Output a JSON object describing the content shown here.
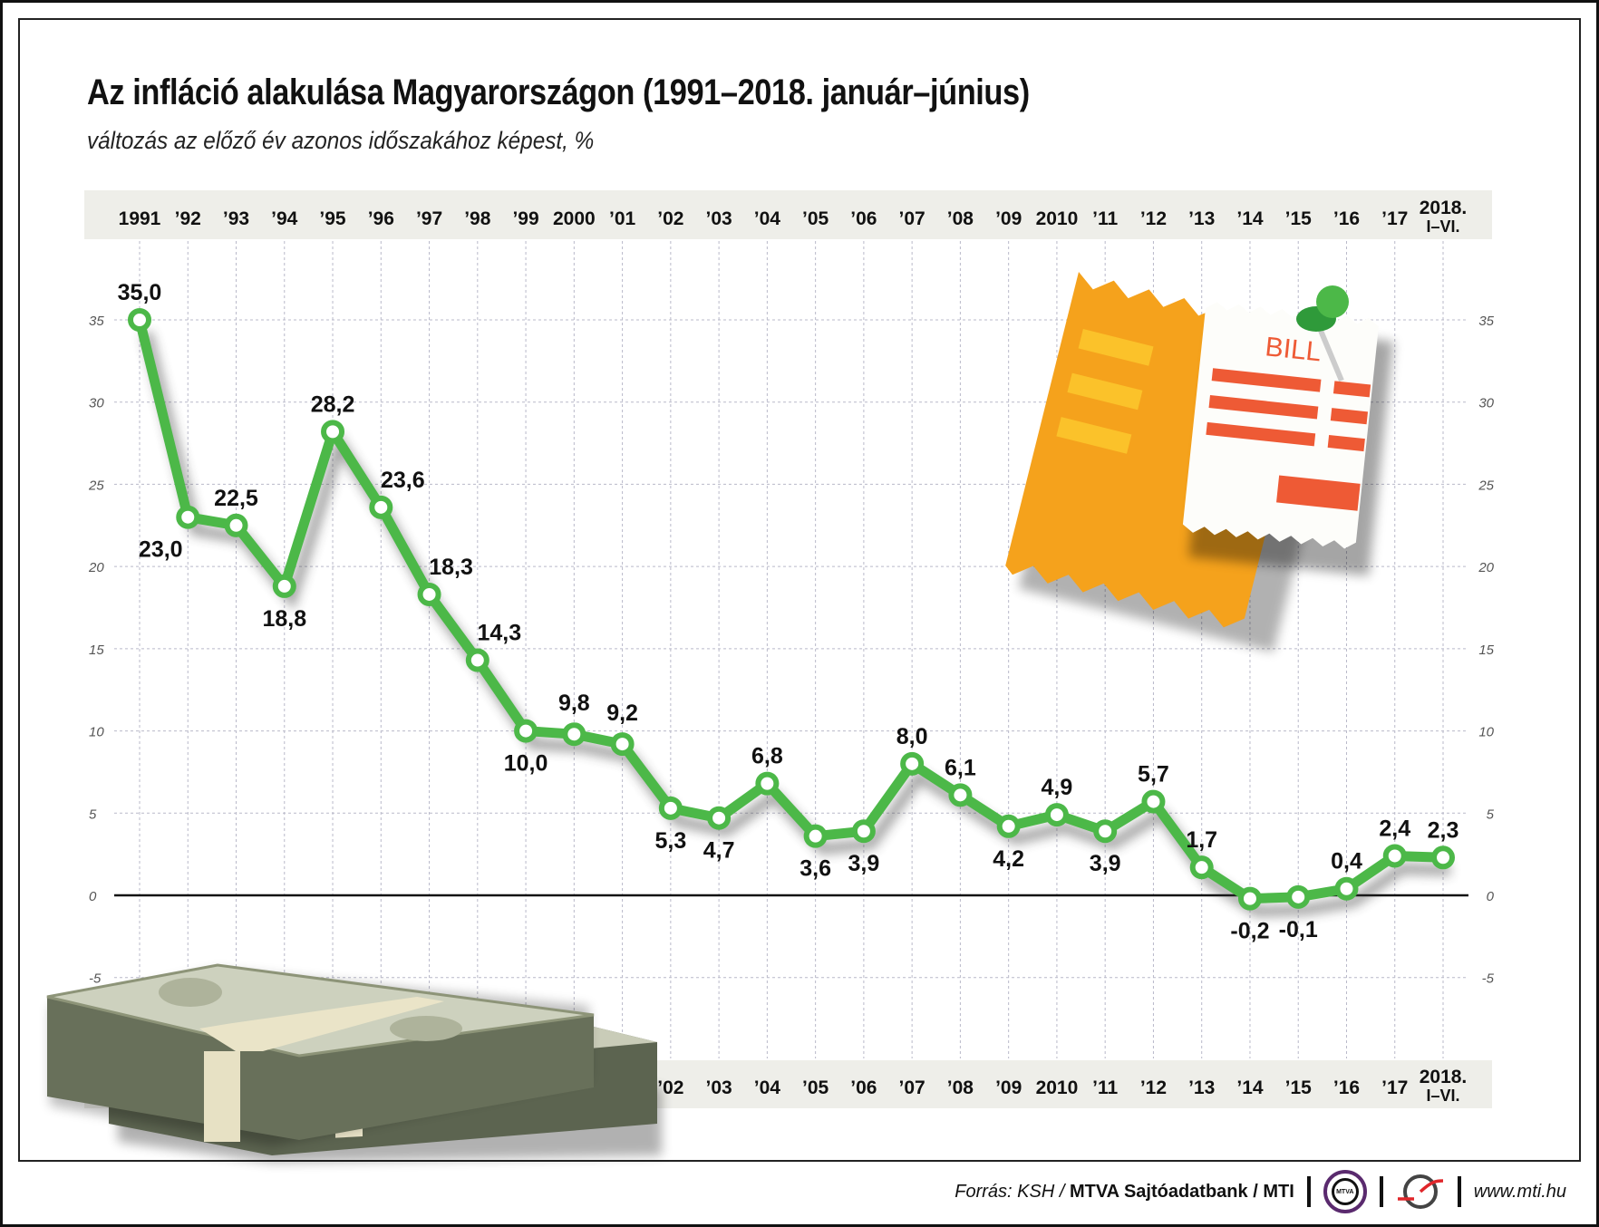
{
  "title": "Az infláció alakulása Magyarországon (1991–2018. január–június)",
  "subtitle": "változás az előző év azonos időszakához képest, %",
  "footer": {
    "source_prefix": "Forrás: KSH / ",
    "source_bold": "MTVA Sajtóadatbank / MTI",
    "logo_text": "MTVA",
    "url": "www.mti.hu"
  },
  "decorations": {
    "bill_text": "BILL"
  },
  "colors": {
    "line": "#4cb848",
    "band": "#eeeee9",
    "grid": "#b9b9c9"
  },
  "chart_data": {
    "type": "line",
    "title": "Az infláció alakulása Magyarországon (1991–2018. január–június)",
    "ylabel": "változás az előző év azonos időszakához képest, %",
    "categories": [
      "1991",
      "’92",
      "’93",
      "’94",
      "’95",
      "’96",
      "’97",
      "’98",
      "’99",
      "2000",
      "’01",
      "’02",
      "’03",
      "’04",
      "’05",
      "’06",
      "’07",
      "’08",
      "’09",
      "2010",
      "’11",
      "’12",
      "’13",
      "’14",
      "’15",
      "’16",
      "’17",
      "2018. I–VI."
    ],
    "values": [
      35.0,
      23.0,
      22.5,
      18.8,
      28.2,
      23.6,
      18.3,
      14.3,
      10.0,
      9.8,
      9.2,
      5.3,
      4.7,
      6.8,
      3.6,
      3.9,
      8.0,
      6.1,
      4.2,
      4.9,
      3.9,
      5.7,
      1.7,
      -0.2,
      -0.1,
      0.4,
      2.4,
      2.3
    ],
    "value_labels": [
      "35,0",
      "23,0",
      "22,5",
      "18,8",
      "28,2",
      "23,6",
      "18,3",
      "14,3",
      "10,0",
      "9,8",
      "9,2",
      "5,3",
      "4,7",
      "6,8",
      "3,6",
      "3,9",
      "8,0",
      "6,1",
      "4,2",
      "4,9",
      "3,9",
      "5,7",
      "1,7",
      "-0,2",
      "-0,1",
      "0,4",
      "2,4",
      "2,3"
    ],
    "yticks": [
      35,
      30,
      25,
      20,
      15,
      10,
      5,
      0,
      -5
    ],
    "ylim": [
      -5,
      35
    ],
    "grid": true,
    "legend": "none"
  }
}
